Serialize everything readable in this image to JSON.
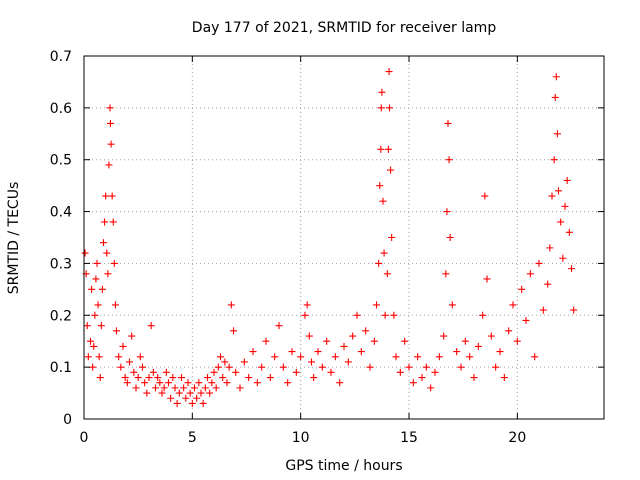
{
  "chart_data": {
    "type": "scatter",
    "title": "Day 177 of 2021, SRMTID for receiver lamp",
    "xlabel": "GPS time / hours",
    "ylabel": "SRMTID / TECUs",
    "xlim": [
      0,
      24
    ],
    "ylim": [
      0,
      0.7
    ],
    "x_ticks": [
      0,
      5,
      10,
      15,
      20
    ],
    "x_tick_labels": [
      "0",
      "5",
      "10",
      "15",
      "20"
    ],
    "y_ticks": [
      0,
      0.1,
      0.2,
      0.3,
      0.4,
      0.5,
      0.6,
      0.7
    ],
    "y_tick_labels": [
      "0",
      "0.1",
      "0.2",
      "0.3",
      "0.4",
      "0.5",
      "0.6",
      "0.7"
    ],
    "grid": true,
    "marker": "+",
    "series": [
      {
        "name": "SRMTID",
        "color": "#ff0000",
        "points": [
          [
            0.05,
            0.32
          ],
          [
            0.1,
            0.28
          ],
          [
            0.15,
            0.18
          ],
          [
            0.2,
            0.12
          ],
          [
            0.3,
            0.15
          ],
          [
            0.35,
            0.25
          ],
          [
            0.4,
            0.1
          ],
          [
            0.45,
            0.14
          ],
          [
            0.5,
            0.2
          ],
          [
            0.55,
            0.27
          ],
          [
            0.6,
            0.3
          ],
          [
            0.65,
            0.22
          ],
          [
            0.7,
            0.12
          ],
          [
            0.75,
            0.08
          ],
          [
            0.8,
            0.18
          ],
          [
            0.85,
            0.25
          ],
          [
            0.9,
            0.34
          ],
          [
            0.95,
            0.38
          ],
          [
            1.0,
            0.43
          ],
          [
            1.05,
            0.32
          ],
          [
            1.1,
            0.28
          ],
          [
            1.15,
            0.49
          ],
          [
            1.2,
            0.6
          ],
          [
            1.22,
            0.57
          ],
          [
            1.25,
            0.53
          ],
          [
            1.3,
            0.43
          ],
          [
            1.35,
            0.38
          ],
          [
            1.4,
            0.3
          ],
          [
            1.45,
            0.22
          ],
          [
            1.5,
            0.17
          ],
          [
            1.6,
            0.12
          ],
          [
            1.7,
            0.1
          ],
          [
            1.8,
            0.14
          ],
          [
            1.9,
            0.08
          ],
          [
            2.0,
            0.07
          ],
          [
            2.1,
            0.11
          ],
          [
            2.2,
            0.16
          ],
          [
            2.3,
            0.09
          ],
          [
            2.4,
            0.06
          ],
          [
            2.5,
            0.08
          ],
          [
            2.6,
            0.12
          ],
          [
            2.7,
            0.1
          ],
          [
            2.8,
            0.07
          ],
          [
            2.9,
            0.05
          ],
          [
            3.0,
            0.08
          ],
          [
            3.1,
            0.18
          ],
          [
            3.2,
            0.09
          ],
          [
            3.3,
            0.06
          ],
          [
            3.4,
            0.08
          ],
          [
            3.5,
            0.07
          ],
          [
            3.6,
            0.05
          ],
          [
            3.7,
            0.06
          ],
          [
            3.8,
            0.09
          ],
          [
            3.9,
            0.07
          ],
          [
            4.0,
            0.04
          ],
          [
            4.1,
            0.08
          ],
          [
            4.2,
            0.06
          ],
          [
            4.3,
            0.03
          ],
          [
            4.4,
            0.05
          ],
          [
            4.5,
            0.08
          ],
          [
            4.6,
            0.06
          ],
          [
            4.7,
            0.04
          ],
          [
            4.8,
            0.07
          ],
          [
            4.9,
            0.05
          ],
          [
            5.0,
            0.03
          ],
          [
            5.1,
            0.06
          ],
          [
            5.2,
            0.04
          ],
          [
            5.3,
            0.07
          ],
          [
            5.4,
            0.05
          ],
          [
            5.5,
            0.03
          ],
          [
            5.6,
            0.06
          ],
          [
            5.7,
            0.08
          ],
          [
            5.8,
            0.05
          ],
          [
            5.9,
            0.07
          ],
          [
            6.0,
            0.09
          ],
          [
            6.1,
            0.06
          ],
          [
            6.2,
            0.1
          ],
          [
            6.3,
            0.12
          ],
          [
            6.4,
            0.08
          ],
          [
            6.5,
            0.11
          ],
          [
            6.6,
            0.07
          ],
          [
            6.7,
            0.1
          ],
          [
            6.8,
            0.22
          ],
          [
            6.9,
            0.17
          ],
          [
            7.0,
            0.09
          ],
          [
            7.2,
            0.06
          ],
          [
            7.4,
            0.11
          ],
          [
            7.6,
            0.08
          ],
          [
            7.8,
            0.13
          ],
          [
            8.0,
            0.07
          ],
          [
            8.2,
            0.1
          ],
          [
            8.4,
            0.15
          ],
          [
            8.6,
            0.08
          ],
          [
            8.8,
            0.12
          ],
          [
            9.0,
            0.18
          ],
          [
            9.2,
            0.1
          ],
          [
            9.4,
            0.07
          ],
          [
            9.6,
            0.13
          ],
          [
            9.8,
            0.09
          ],
          [
            10.0,
            0.12
          ],
          [
            10.2,
            0.2
          ],
          [
            10.3,
            0.22
          ],
          [
            10.4,
            0.16
          ],
          [
            10.5,
            0.11
          ],
          [
            10.6,
            0.08
          ],
          [
            10.8,
            0.13
          ],
          [
            11.0,
            0.1
          ],
          [
            11.2,
            0.15
          ],
          [
            11.4,
            0.09
          ],
          [
            11.6,
            0.12
          ],
          [
            11.8,
            0.07
          ],
          [
            12.0,
            0.14
          ],
          [
            12.2,
            0.11
          ],
          [
            12.4,
            0.16
          ],
          [
            12.6,
            0.2
          ],
          [
            12.8,
            0.13
          ],
          [
            13.0,
            0.17
          ],
          [
            13.2,
            0.1
          ],
          [
            13.4,
            0.15
          ],
          [
            13.5,
            0.22
          ],
          [
            13.6,
            0.3
          ],
          [
            13.65,
            0.45
          ],
          [
            13.7,
            0.52
          ],
          [
            13.72,
            0.6
          ],
          [
            13.75,
            0.63
          ],
          [
            13.8,
            0.42
          ],
          [
            13.85,
            0.32
          ],
          [
            13.9,
            0.2
          ],
          [
            14.0,
            0.28
          ],
          [
            14.05,
            0.52
          ],
          [
            14.08,
            0.67
          ],
          [
            14.1,
            0.6
          ],
          [
            14.15,
            0.48
          ],
          [
            14.2,
            0.35
          ],
          [
            14.3,
            0.2
          ],
          [
            14.4,
            0.12
          ],
          [
            14.6,
            0.09
          ],
          [
            14.8,
            0.15
          ],
          [
            15.0,
            0.1
          ],
          [
            15.2,
            0.07
          ],
          [
            15.4,
            0.12
          ],
          [
            15.6,
            0.08
          ],
          [
            15.8,
            0.1
          ],
          [
            16.0,
            0.06
          ],
          [
            16.2,
            0.09
          ],
          [
            16.4,
            0.12
          ],
          [
            16.6,
            0.16
          ],
          [
            16.7,
            0.28
          ],
          [
            16.75,
            0.4
          ],
          [
            16.8,
            0.57
          ],
          [
            16.85,
            0.5
          ],
          [
            16.9,
            0.35
          ],
          [
            17.0,
            0.22
          ],
          [
            17.2,
            0.13
          ],
          [
            17.4,
            0.1
          ],
          [
            17.6,
            0.15
          ],
          [
            17.8,
            0.12
          ],
          [
            18.0,
            0.08
          ],
          [
            18.2,
            0.14
          ],
          [
            18.4,
            0.2
          ],
          [
            18.5,
            0.43
          ],
          [
            18.6,
            0.27
          ],
          [
            18.8,
            0.16
          ],
          [
            19.0,
            0.1
          ],
          [
            19.2,
            0.13
          ],
          [
            19.4,
            0.08
          ],
          [
            19.6,
            0.17
          ],
          [
            19.8,
            0.22
          ],
          [
            20.0,
            0.15
          ],
          [
            20.2,
            0.25
          ],
          [
            20.4,
            0.19
          ],
          [
            20.6,
            0.28
          ],
          [
            20.8,
            0.12
          ],
          [
            21.0,
            0.3
          ],
          [
            21.2,
            0.21
          ],
          [
            21.4,
            0.26
          ],
          [
            21.5,
            0.33
          ],
          [
            21.6,
            0.43
          ],
          [
            21.7,
            0.5
          ],
          [
            21.75,
            0.62
          ],
          [
            21.8,
            0.66
          ],
          [
            21.85,
            0.55
          ],
          [
            21.9,
            0.44
          ],
          [
            22.0,
            0.38
          ],
          [
            22.1,
            0.31
          ],
          [
            22.2,
            0.41
          ],
          [
            22.3,
            0.46
          ],
          [
            22.4,
            0.36
          ],
          [
            22.5,
            0.29
          ],
          [
            22.6,
            0.21
          ]
        ]
      }
    ]
  }
}
